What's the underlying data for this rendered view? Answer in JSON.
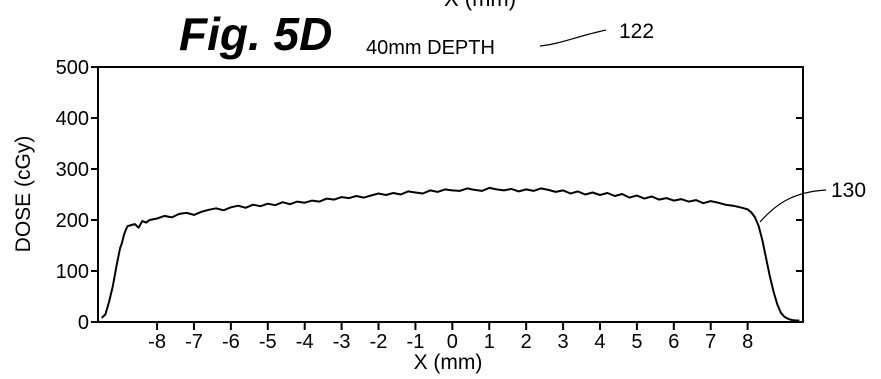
{
  "header_fragment": "X (mm)",
  "figure_label": "Fig. 5D",
  "colors": {
    "ink": "#000000",
    "background": "#ffffff"
  },
  "chart_data": {
    "type": "line",
    "title": "40mm DEPTH",
    "xlabel": "X (mm)",
    "ylabel": "DOSE (cGy)",
    "xlim": [
      -9.6,
      9.5
    ],
    "ylim": [
      0,
      500
    ],
    "x_ticks": [
      -8,
      -7,
      -6,
      -5,
      -4,
      -3,
      -2,
      -1,
      0,
      1,
      2,
      3,
      4,
      5,
      6,
      7,
      8
    ],
    "y_ticks": [
      0,
      100,
      200,
      300,
      400,
      500
    ],
    "grid": false,
    "reference_labels": {
      "title_ref": "122",
      "curve_ref": "130"
    },
    "series": [
      {
        "x": [
          -9.5,
          -9.4,
          -9.3,
          -9.2,
          -9.1,
          -9.0,
          -8.95,
          -8.9,
          -8.85,
          -8.8,
          -8.7,
          -8.6,
          -8.5,
          -8.4,
          -8.3,
          -8.2,
          -8.0,
          -7.8,
          -7.6,
          -7.4,
          -7.2,
          -7.0,
          -6.8,
          -6.6,
          -6.4,
          -6.2,
          -6.0,
          -5.8,
          -5.6,
          -5.4,
          -5.2,
          -5.0,
          -4.8,
          -4.6,
          -4.4,
          -4.2,
          -4.0,
          -3.8,
          -3.6,
          -3.4,
          -3.2,
          -3.0,
          -2.8,
          -2.6,
          -2.4,
          -2.2,
          -2.0,
          -1.8,
          -1.6,
          -1.4,
          -1.2,
          -1.0,
          -0.8,
          -0.6,
          -0.4,
          -0.2,
          0.0,
          0.2,
          0.4,
          0.6,
          0.8,
          1.0,
          1.2,
          1.4,
          1.6,
          1.8,
          2.0,
          2.2,
          2.4,
          2.6,
          2.8,
          3.0,
          3.2,
          3.4,
          3.6,
          3.8,
          4.0,
          4.2,
          4.4,
          4.6,
          4.8,
          5.0,
          5.2,
          5.4,
          5.6,
          5.8,
          6.0,
          6.2,
          6.4,
          6.6,
          6.8,
          7.0,
          7.2,
          7.4,
          7.6,
          7.8,
          8.0,
          8.1,
          8.2,
          8.3,
          8.4,
          8.5,
          8.6,
          8.7,
          8.8,
          8.9,
          9.0,
          9.1,
          9.2,
          9.3,
          9.4
        ],
        "y": [
          8,
          15,
          40,
          70,
          110,
          145,
          155,
          170,
          180,
          188,
          190,
          192,
          185,
          198,
          195,
          200,
          203,
          208,
          205,
          212,
          214,
          210,
          216,
          220,
          223,
          219,
          225,
          228,
          224,
          230,
          227,
          232,
          229,
          235,
          231,
          236,
          234,
          238,
          236,
          242,
          240,
          245,
          243,
          247,
          244,
          248,
          252,
          249,
          253,
          250,
          256,
          254,
          252,
          258,
          255,
          260,
          258,
          257,
          262,
          259,
          257,
          263,
          260,
          258,
          261,
          256,
          260,
          257,
          262,
          259,
          255,
          258,
          252,
          256,
          250,
          254,
          249,
          253,
          247,
          251,
          244,
          248,
          242,
          246,
          240,
          243,
          238,
          241,
          236,
          239,
          233,
          237,
          234,
          230,
          228,
          225,
          221,
          215,
          205,
          188,
          160,
          125,
          90,
          60,
          35,
          18,
          10,
          6,
          4,
          3,
          3
        ]
      }
    ]
  }
}
